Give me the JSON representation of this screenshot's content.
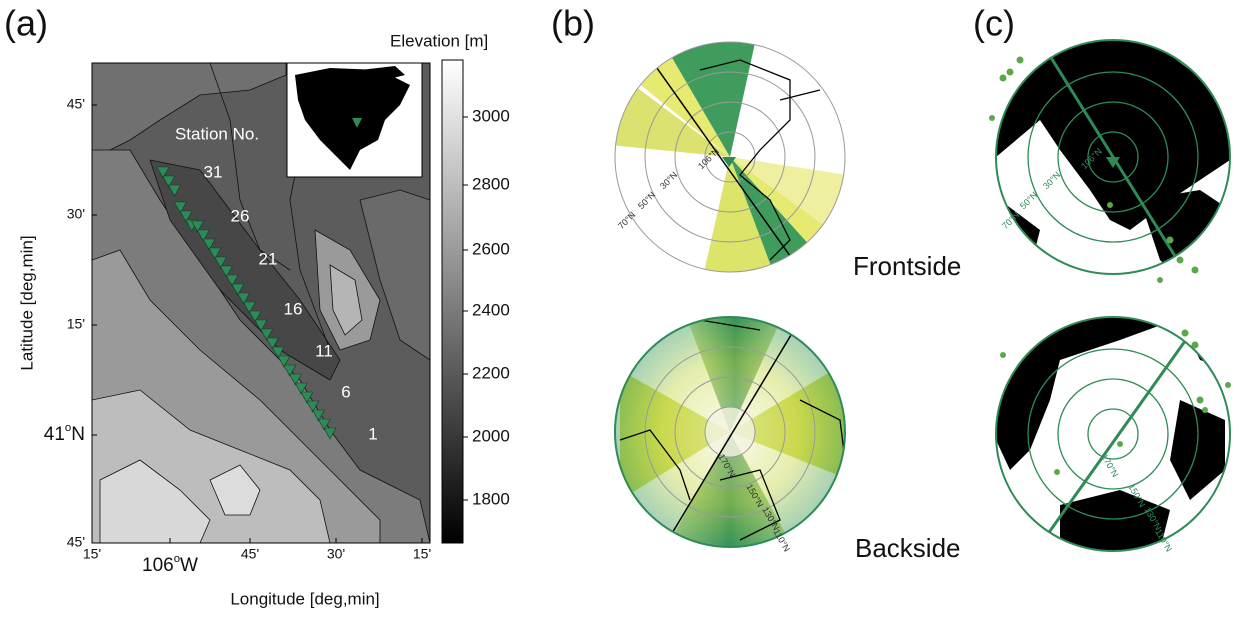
{
  "panels": {
    "a": {
      "label": "(a)",
      "colorbar": {
        "title": "Elevation [m]",
        "ticks": [
          "3000",
          "2800",
          "2600",
          "2400",
          "2200",
          "2000",
          "1800"
        ]
      },
      "y_axis": {
        "title": "Latitude [deg,min]",
        "ticks": [
          "45'",
          "30'",
          "15'",
          {
            "main": "41",
            "sup": "o",
            "unit": "N"
          },
          "45'"
        ]
      },
      "x_axis": {
        "title": "Longitude [deg,min]",
        "ticks": [
          "15'",
          {
            "main": "106",
            "sup": "o",
            "unit": "W"
          },
          "45'",
          "30'",
          "15'"
        ]
      },
      "station_title": "Station No.",
      "stations": [
        "31",
        "26",
        "21",
        "16",
        "11",
        "6",
        "1"
      ]
    },
    "b": {
      "label": "(b)",
      "top_caption": "Frontside",
      "bottom_caption": "Backside",
      "top_map_labels": [
        "106°N",
        "30°N",
        "50°N",
        "70°N"
      ],
      "bottom_map_labels": [
        "170°N",
        "150°N",
        "130°N",
        "110°N"
      ]
    },
    "c": {
      "label": "(c)",
      "top_map_labels": [
        "106°N",
        "30°N",
        "50°N",
        "70°N"
      ],
      "bottom_map_labels": [
        "170°N",
        "150°N",
        "130°N",
        "110°N"
      ]
    }
  }
}
